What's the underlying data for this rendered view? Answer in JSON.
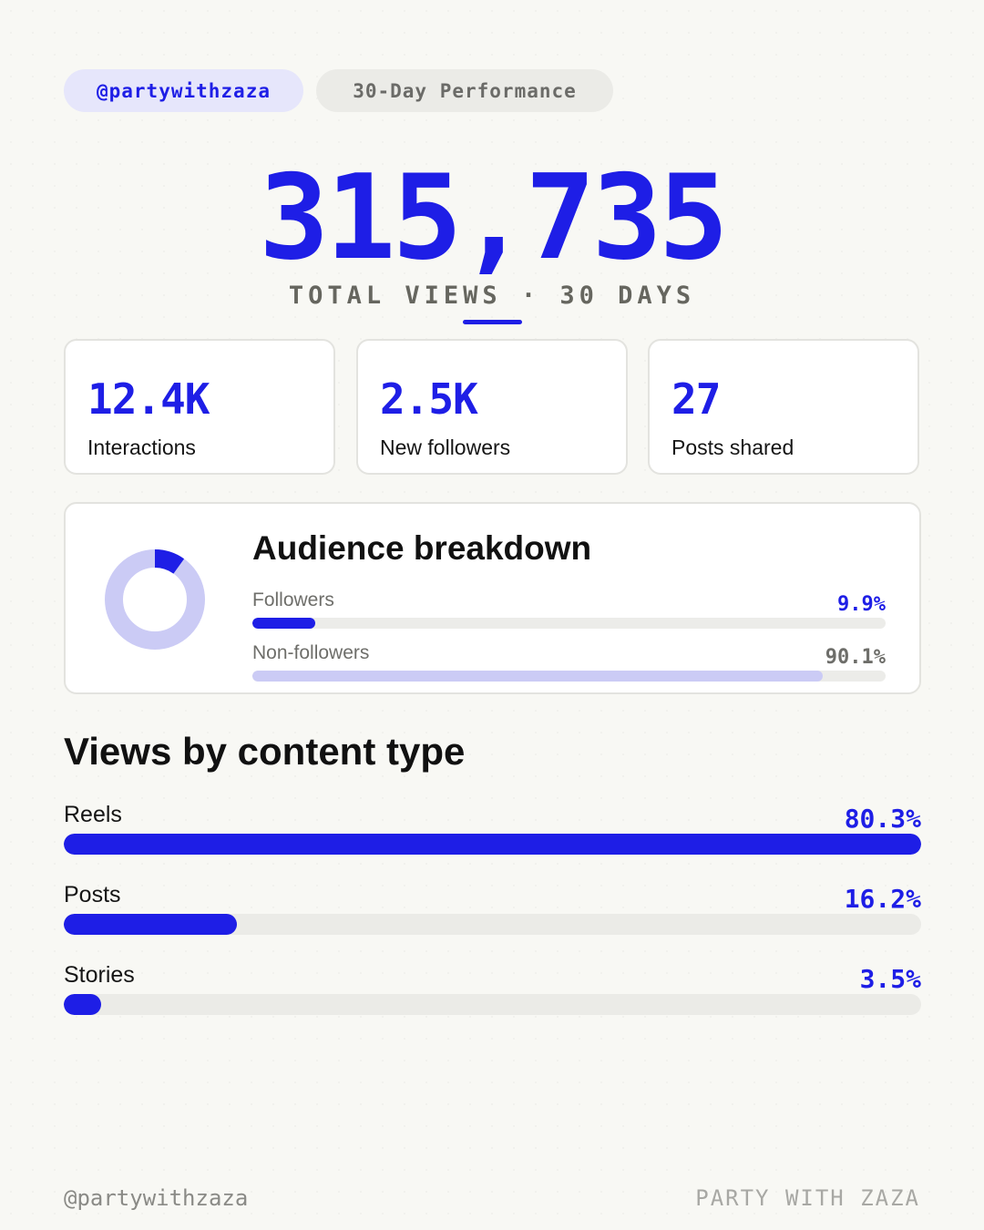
{
  "header": {
    "handle": "@partywithzaza",
    "period": "30-Day Performance"
  },
  "hero": {
    "total_views": "315,735",
    "caption": "TOTAL VIEWS · 30 DAYS"
  },
  "stats": [
    {
      "value": "12.4K",
      "label": "Interactions"
    },
    {
      "value": "2.5K",
      "label": "New followers"
    },
    {
      "value": "27",
      "label": "Posts shared"
    }
  ],
  "audience": {
    "title": "Audience breakdown",
    "segments": [
      {
        "label": "Followers",
        "percent_text": "9.9%",
        "percent": 9.9,
        "color": "#1e1ee6"
      },
      {
        "label": "Non-followers",
        "percent_text": "90.1%",
        "percent": 90.1,
        "color": "#cbcbf5"
      }
    ]
  },
  "content_type": {
    "title": "Views by content type",
    "rows": [
      {
        "label": "Reels",
        "percent_text": "80.3%",
        "percent": 80.3
      },
      {
        "label": "Posts",
        "percent_text": "16.2%",
        "percent": 16.2
      },
      {
        "label": "Stories",
        "percent_text": "3.5%",
        "percent": 3.5
      }
    ]
  },
  "footer": {
    "handle": "@partywithzaza",
    "brand": "PARTY WITH ZAZA"
  },
  "colors": {
    "accent": "#1e1ee6",
    "accent_light": "#cbcbf5",
    "muted_text": "#6e6e6a",
    "track": "#ebebe7"
  }
}
